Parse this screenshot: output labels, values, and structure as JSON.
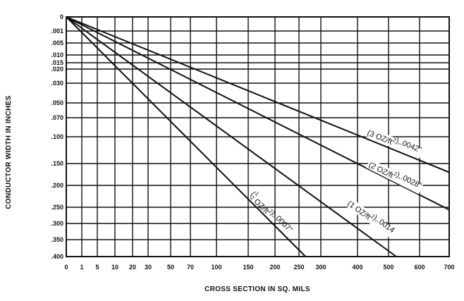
{
  "chart_data": {
    "type": "line",
    "title": "",
    "xlabel": "CROSS SECTION IN SQ. MILS",
    "ylabel": "CONDUCTOR WIDTH IN INCHES",
    "x_ticks": [
      "0",
      "1",
      "5",
      "10",
      "20",
      "30",
      "50",
      "70",
      "100",
      "150",
      "200",
      "250",
      "300",
      "400",
      "500",
      "600",
      "700"
    ],
    "y_ticks": [
      "0",
      ".001",
      ".005",
      ".010",
      ".015",
      ".020",
      ".030",
      ".050",
      ".070",
      ".100",
      ".150",
      ".200",
      ".250",
      ".300",
      ".350",
      ".400"
    ],
    "grid": true,
    "legend": "none",
    "series": [
      {
        "name": "(1/2 OZ/ft², .0007\")",
        "label_parts": [
          "(",
          "1",
          "2",
          " OZ/ft",
          "2",
          "),.0007\""
        ],
        "x": [
          0,
          265
        ],
        "y": [
          0,
          0.4
        ]
      },
      {
        "name": "(1 OZ/ft², .0014\")",
        "label_parts": [
          "(1 OZ/ft",
          "2",
          "),.0014"
        ],
        "x": [
          0,
          525
        ],
        "y": [
          0,
          0.4
        ]
      },
      {
        "name": "(2 OZ/ft², .0028\")",
        "label_parts": [
          "(2 OZ/ft",
          "2",
          "),.0028\""
        ],
        "x": [
          0,
          700
        ],
        "y": [
          0,
          0.258
        ]
      },
      {
        "name": "(3 OZ/ft², .0042\")",
        "label_parts": [
          "(3 OZ/ft",
          "2",
          "),.0042\""
        ],
        "x": [
          0,
          700
        ],
        "y": [
          0,
          0.17
        ]
      }
    ]
  }
}
